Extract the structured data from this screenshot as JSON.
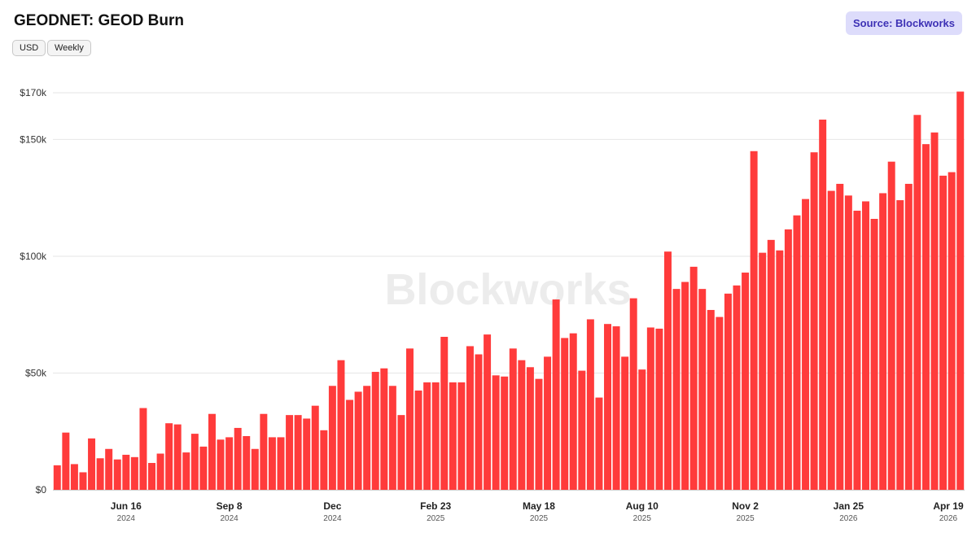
{
  "header": {
    "title": "GEODNET: GEOD Burn",
    "currency_label": "USD",
    "interval_label": "Weekly",
    "source_label": "Source: Blockworks"
  },
  "watermark": "Blockworks",
  "colors": {
    "bar": "#ff3b3b",
    "grid": "#e6e6e6",
    "source_bg": "#dddcfb",
    "source_text": "#3d31b5"
  },
  "chart_data": {
    "type": "bar",
    "title": "GEODNET: GEOD Burn",
    "unit": "USD",
    "ylim": [
      0,
      170000
    ],
    "y_ticks": [
      {
        "value": 0,
        "label": "$0"
      },
      {
        "value": 50000,
        "label": "$50k"
      },
      {
        "value": 100000,
        "label": "$100k"
      },
      {
        "value": 150000,
        "label": "$150k"
      },
      {
        "value": 170000,
        "label": "$170k"
      }
    ],
    "x_ticks": [
      {
        "index": 8,
        "label": "Jun 16",
        "year": "2024"
      },
      {
        "index": 20,
        "label": "Sep 8",
        "year": "2024"
      },
      {
        "index": 32,
        "label": "Dec",
        "year": "2024"
      },
      {
        "index": 44,
        "label": "Feb 23",
        "year": "2025"
      },
      {
        "index": 56,
        "label": "May 18",
        "year": "2025"
      },
      {
        "index": 68,
        "label": "Aug 10",
        "year": "2025"
      },
      {
        "index": 80,
        "label": "Nov 2",
        "year": "2025"
      },
      {
        "index": 92,
        "label": "Jan 25",
        "year": "2026"
      },
      {
        "index": 104,
        "label": "Apr 19",
        "year": "2026"
      }
    ],
    "grid": true,
    "values": [
      10500,
      24500,
      11000,
      7500,
      22000,
      13500,
      17500,
      13000,
      15000,
      14000,
      35000,
      11500,
      15500,
      28500,
      28000,
      16000,
      24000,
      18500,
      32500,
      21500,
      22500,
      26500,
      23000,
      17500,
      32500,
      22500,
      22500,
      32000,
      32000,
      30500,
      36000,
      25500,
      44500,
      55500,
      38500,
      42000,
      44500,
      50500,
      52000,
      44500,
      32000,
      60500,
      42500,
      46000,
      46000,
      65500,
      46000,
      46000,
      61500,
      58000,
      66500,
      49000,
      48500,
      60500,
      55500,
      52500,
      47500,
      57000,
      81500,
      65000,
      67000,
      51000,
      73000,
      39500,
      71000,
      70000,
      57000,
      82000,
      51500,
      69500,
      69000,
      102000,
      86000,
      89000,
      95500,
      86000,
      77000,
      74000,
      84000,
      87500,
      93000,
      145000,
      101500,
      107000,
      102500,
      111500,
      117500,
      124500,
      144500,
      158500,
      128000,
      131000,
      126000,
      119500,
      123500,
      116000,
      127000,
      140500,
      124000,
      131000,
      160500,
      148000,
      153000,
      134500,
      136000,
      170500
    ]
  }
}
